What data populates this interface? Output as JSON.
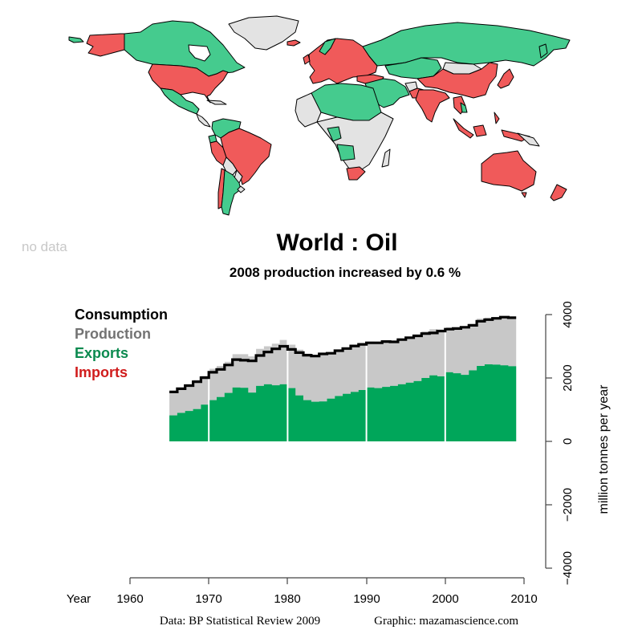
{
  "map": {
    "legend_no_data": "no data",
    "colors": {
      "exporter": "#45cb8e",
      "importer": "#f05a5a",
      "no_data": "#e3e3e3",
      "border": "#000000"
    }
  },
  "header": {
    "title": "World :  Oil",
    "subtitle": "2008 production increased by 0.6 %"
  },
  "legend": {
    "items": [
      {
        "label": "Consumption",
        "color": "#000000"
      },
      {
        "label": "Production",
        "color": "#737373"
      },
      {
        "label": "Exports",
        "color": "#0b8a4f"
      },
      {
        "label": "Imports",
        "color": "#d01c1c"
      }
    ]
  },
  "axes": {
    "x_label": "Year",
    "x_ticks": [
      "1960",
      "1970",
      "1980",
      "1990",
      "2000",
      "2010"
    ],
    "y_label": "million tonnes per year",
    "y_ticks": [
      "4000",
      "2000",
      "0",
      "−2000",
      "−4000"
    ]
  },
  "footer": {
    "data_source": "Data: BP Statistical Review 2009",
    "graphic_credit": "Graphic: mazamascience.com"
  },
  "chart_data": {
    "type": "area",
    "title": "World :  Oil",
    "subtitle": "2008 production increased by 0.6 %",
    "xlabel": "Year",
    "ylabel": "million tonnes per year",
    "xlim": [
      1960,
      2010
    ],
    "ylim": [
      -4000,
      4000
    ],
    "x_ticks": [
      1960,
      1970,
      1980,
      1990,
      2000,
      2010
    ],
    "y_ticks": [
      -4000,
      -2000,
      0,
      2000,
      4000
    ],
    "legend_position": "top-left",
    "grid": false,
    "x": [
      1965,
      1966,
      1967,
      1968,
      1969,
      1970,
      1971,
      1972,
      1973,
      1974,
      1975,
      1976,
      1977,
      1978,
      1979,
      1980,
      1981,
      1982,
      1983,
      1984,
      1985,
      1986,
      1987,
      1988,
      1989,
      1990,
      1991,
      1992,
      1993,
      1994,
      1995,
      1996,
      1997,
      1998,
      1999,
      2000,
      2001,
      2002,
      2003,
      2004,
      2005,
      2006,
      2007,
      2008
    ],
    "series": [
      {
        "name": "Consumption",
        "color": "#000000",
        "style": "step-line",
        "values": [
          1560,
          1660,
          1760,
          1880,
          2010,
          2180,
          2270,
          2410,
          2580,
          2560,
          2540,
          2710,
          2820,
          2920,
          3000,
          2900,
          2800,
          2720,
          2690,
          2760,
          2780,
          2860,
          2930,
          3010,
          3060,
          3110,
          3110,
          3150,
          3140,
          3210,
          3270,
          3330,
          3400,
          3420,
          3480,
          3540,
          3560,
          3600,
          3660,
          3790,
          3840,
          3880,
          3920,
          3900
        ]
      },
      {
        "name": "Production",
        "color": "#c8c8c8",
        "style": "step-area",
        "values": [
          1570,
          1680,
          1800,
          1940,
          2070,
          2290,
          2380,
          2510,
          2750,
          2750,
          2680,
          2920,
          3000,
          3080,
          3200,
          3050,
          2890,
          2770,
          2730,
          2790,
          2770,
          2870,
          2900,
          3020,
          3070,
          3150,
          3140,
          3180,
          3180,
          3240,
          3270,
          3370,
          3470,
          3540,
          3480,
          3600,
          3600,
          3590,
          3700,
          3870,
          3900,
          3920,
          3900,
          3930
        ]
      },
      {
        "name": "Exports",
        "color": "#00a65a",
        "style": "step-area",
        "values": [
          820,
          900,
          960,
          1020,
          1160,
          1300,
          1400,
          1530,
          1700,
          1690,
          1540,
          1750,
          1800,
          1770,
          1800,
          1680,
          1450,
          1300,
          1250,
          1260,
          1350,
          1430,
          1500,
          1560,
          1620,
          1700,
          1680,
          1720,
          1750,
          1800,
          1850,
          1900,
          2000,
          2080,
          2050,
          2180,
          2150,
          2100,
          2240,
          2380,
          2430,
          2420,
          2400,
          2370
        ]
      },
      {
        "name": "Imports",
        "color": "#d01c1c",
        "style": "step-area",
        "values": []
      }
    ]
  }
}
